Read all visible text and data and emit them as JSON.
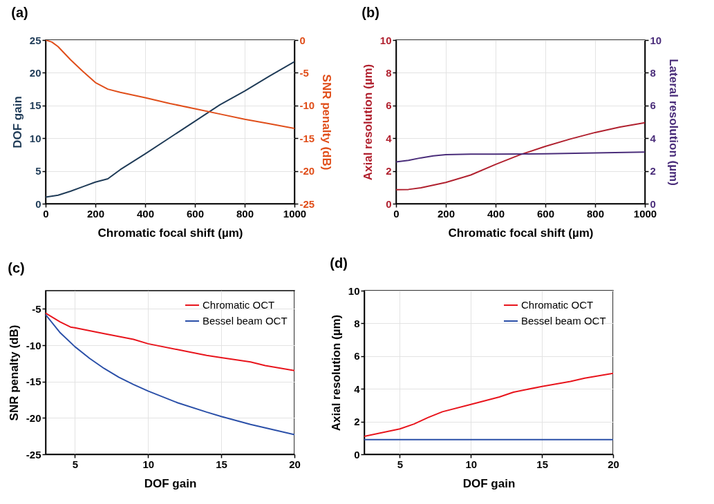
{
  "chart_data": [
    {
      "type": "line",
      "title": "(a)",
      "xlabel": "Chromatic focal shift (µm)",
      "ylabel": "DOF gain",
      "y2label": "SNR penalty (dB)",
      "xlim": [
        0,
        1000
      ],
      "xticks": [
        0,
        200,
        400,
        600,
        800,
        1000
      ],
      "ylim": [
        0,
        25
      ],
      "yticks": [
        0,
        5,
        10,
        15,
        20,
        25
      ],
      "y2lim": [
        -25,
        0
      ],
      "y2ticks": [
        -25,
        -20,
        -15,
        -10,
        -5,
        0
      ],
      "grid": true,
      "series": [
        {
          "color": "#1f3b57",
          "x": [
            0,
            50,
            100,
            150,
            200,
            250,
            300,
            400,
            500,
            600,
            700,
            800,
            900,
            1000
          ],
          "values": [
            1,
            1.3,
            1.9,
            2.6,
            3.3,
            3.8,
            5.2,
            7.6,
            10.1,
            12.6,
            15.1,
            17.2,
            19.5,
            21.7
          ]
        },
        {
          "color": "#e04e1a",
          "axis": "y2",
          "x": [
            0,
            25,
            50,
            100,
            150,
            200,
            250,
            300,
            400,
            500,
            600,
            700,
            800,
            900,
            1000
          ],
          "values": [
            0,
            -0.3,
            -1.0,
            -3.0,
            -4.8,
            -6.5,
            -7.5,
            -8.0,
            -8.8,
            -9.7,
            -10.5,
            -11.3,
            -12.1,
            -12.8,
            -13.5
          ]
        }
      ]
    },
    {
      "type": "line",
      "title": "(b)",
      "xlabel": "Chromatic focal shift (µm)",
      "ylabel": "Axial resolution (µm)",
      "y2label": "Lateral resolution (µm)",
      "xlim": [
        0,
        1000
      ],
      "xticks": [
        0,
        200,
        400,
        600,
        800,
        1000
      ],
      "ylim": [
        0,
        10
      ],
      "yticks": [
        0,
        2,
        4,
        6,
        8,
        10
      ],
      "y2lim": [
        0,
        10
      ],
      "y2ticks": [
        0,
        2,
        4,
        6,
        8,
        10
      ],
      "grid": true,
      "series": [
        {
          "color": "#b0202e",
          "x": [
            0,
            50,
            100,
            200,
            300,
            400,
            500,
            600,
            700,
            800,
            900,
            1000
          ],
          "values": [
            0.85,
            0.87,
            0.97,
            1.3,
            1.75,
            2.4,
            3.0,
            3.5,
            3.95,
            4.35,
            4.68,
            4.95
          ]
        },
        {
          "color": "#4a2d7a",
          "axis": "y2",
          "x": [
            0,
            50,
            100,
            150,
            200,
            300,
            400,
            600,
            800,
            1000
          ],
          "values": [
            2.55,
            2.65,
            2.8,
            2.92,
            3.0,
            3.03,
            3.03,
            3.05,
            3.1,
            3.15
          ]
        }
      ]
    },
    {
      "type": "line",
      "title": "(c)",
      "xlabel": "DOF gain",
      "ylabel": "SNR penalty (dB)",
      "xlim": [
        3,
        20
      ],
      "xticks": [
        5,
        10,
        15,
        20
      ],
      "ylim": [
        -25,
        -2.5
      ],
      "yticks": [
        -25,
        -20,
        -15,
        -10,
        -5
      ],
      "grid": true,
      "legend": "top right",
      "series": [
        {
          "name": "Chromatic OCT",
          "color": "#e8141c",
          "x": [
            3,
            4,
            4.7,
            5,
            7,
            9,
            10,
            12,
            14,
            15,
            17,
            18,
            20
          ],
          "values": [
            -5.6,
            -6.8,
            -7.5,
            -7.6,
            -8.4,
            -9.2,
            -9.8,
            -10.6,
            -11.4,
            -11.7,
            -12.3,
            -12.8,
            -13.5
          ]
        },
        {
          "name": "Bessel beam OCT",
          "color": "#2a4fa8",
          "x": [
            3,
            4,
            5,
            6,
            7,
            8,
            9,
            10,
            12,
            14,
            15,
            17,
            20
          ],
          "values": [
            -5.8,
            -8.3,
            -10.2,
            -11.8,
            -13.2,
            -14.4,
            -15.4,
            -16.3,
            -17.9,
            -19.2,
            -19.8,
            -20.9,
            -22.3
          ]
        }
      ]
    },
    {
      "type": "line",
      "title": "(d)",
      "xlabel": "DOF gain",
      "ylabel": "Axial resolution (µm)",
      "xlim": [
        2.5,
        20
      ],
      "xticks": [
        5,
        10,
        15,
        20
      ],
      "ylim": [
        0,
        10
      ],
      "yticks": [
        0,
        2,
        4,
        6,
        8,
        10
      ],
      "grid": true,
      "legend": "top right",
      "series": [
        {
          "name": "Chromatic OCT",
          "color": "#e8141c",
          "x": [
            2.5,
            5,
            6,
            7,
            8,
            10,
            12,
            13,
            15,
            17,
            18,
            20
          ],
          "values": [
            1.1,
            1.55,
            1.85,
            2.25,
            2.6,
            3.05,
            3.5,
            3.8,
            4.15,
            4.45,
            4.65,
            4.95
          ]
        },
        {
          "name": "Bessel beam OCT",
          "color": "#2a4fa8",
          "x": [
            2.5,
            20
          ],
          "values": [
            0.9,
            0.9
          ]
        }
      ]
    }
  ]
}
